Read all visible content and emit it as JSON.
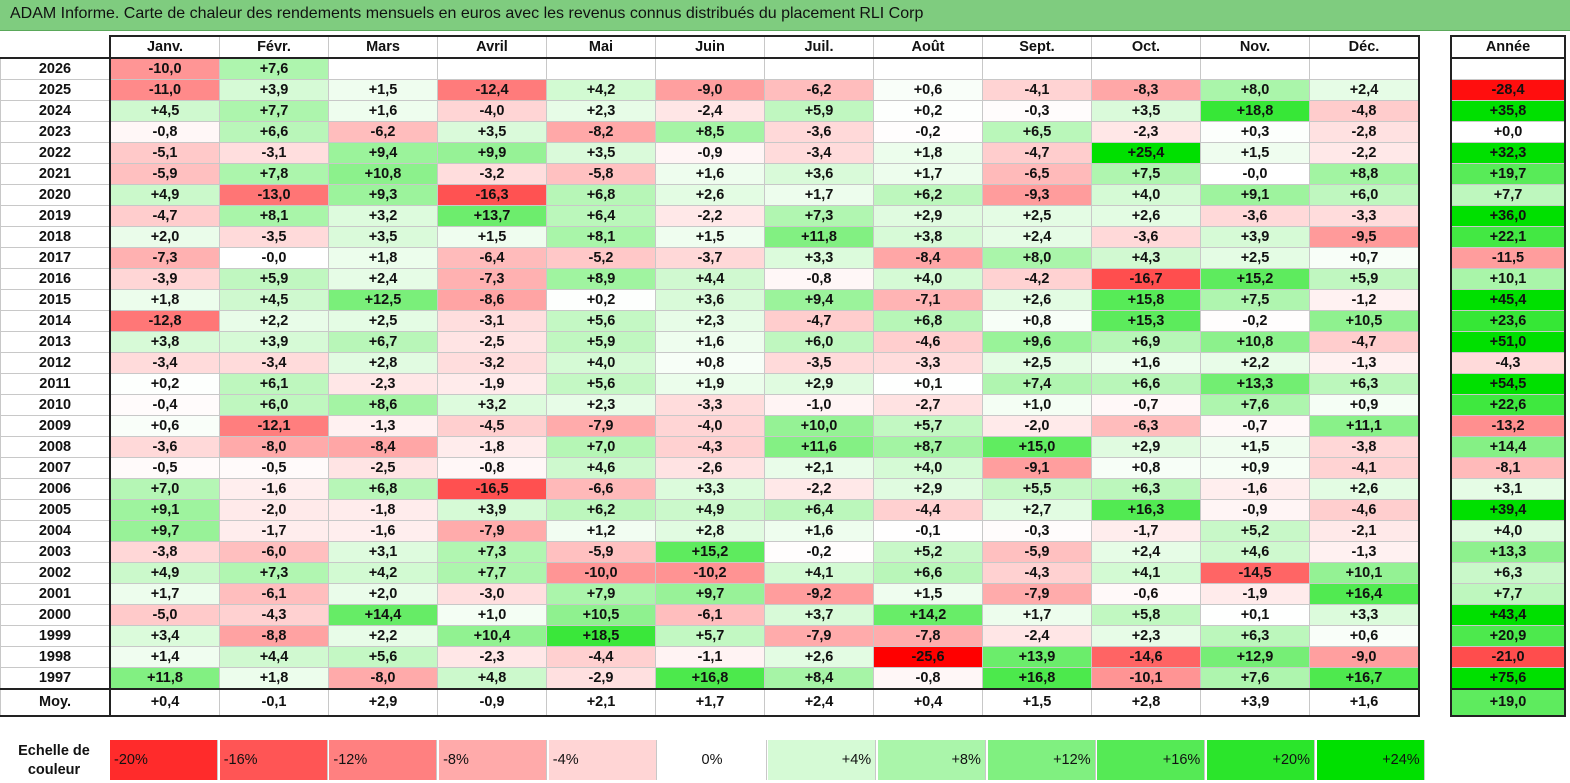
{
  "title": "ADAM Informe. Carte de chaleur des rendements mensuels en euros avec les revenus connus distribués du placement RLI Corp",
  "chart_data": {
    "type": "heatmap",
    "title": "ADAM Informe. Carte de chaleur des rendements mensuels en euros avec les revenus connus distribués du placement RLI Corp",
    "columns": [
      "Janv.",
      "Févr.",
      "Mars",
      "Avril",
      "Mai",
      "Juin",
      "Juil.",
      "Août",
      "Sept.",
      "Oct.",
      "Nov.",
      "Déc."
    ],
    "year_header": "Année",
    "rows": [
      {
        "label": "2026",
        "months": [
          -10.0,
          7.6,
          null,
          null,
          null,
          null,
          null,
          null,
          null,
          null,
          null,
          null
        ],
        "year": null
      },
      {
        "label": "2025",
        "months": [
          -11.0,
          3.9,
          1.5,
          -12.4,
          4.2,
          -9.0,
          -6.2,
          0.6,
          -4.1,
          -8.3,
          8.0,
          2.4
        ],
        "year": -28.4
      },
      {
        "label": "2024",
        "months": [
          4.5,
          7.7,
          1.6,
          -4.0,
          2.3,
          -2.4,
          5.9,
          0.2,
          -0.3,
          3.5,
          18.8,
          -4.8
        ],
        "year": 35.8
      },
      {
        "label": "2023",
        "months": [
          -0.8,
          6.6,
          -6.2,
          3.5,
          -8.2,
          8.5,
          -3.6,
          -0.2,
          6.5,
          -2.3,
          0.3,
          -2.8
        ],
        "year": 0.0
      },
      {
        "label": "2022",
        "months": [
          -5.1,
          -3.1,
          9.4,
          9.9,
          3.5,
          -0.9,
          -3.4,
          1.8,
          -4.7,
          25.4,
          1.5,
          -2.2
        ],
        "year": 32.3
      },
      {
        "label": "2021",
        "months": [
          -5.9,
          7.8,
          10.8,
          -3.2,
          -5.8,
          1.6,
          3.6,
          1.7,
          -6.5,
          7.5,
          -0.0,
          8.8
        ],
        "year": 19.7
      },
      {
        "label": "2020",
        "months": [
          4.9,
          -13.0,
          9.3,
          -16.3,
          6.8,
          2.6,
          1.7,
          6.2,
          -9.3,
          4.0,
          9.1,
          6.0
        ],
        "year": 7.7
      },
      {
        "label": "2019",
        "months": [
          -4.7,
          8.1,
          3.2,
          13.7,
          6.4,
          -2.2,
          7.3,
          2.9,
          2.5,
          2.6,
          -3.6,
          -3.3
        ],
        "year": 36.0
      },
      {
        "label": "2018",
        "months": [
          2.0,
          -3.5,
          3.5,
          1.5,
          8.1,
          1.5,
          11.8,
          3.8,
          2.4,
          -3.6,
          3.9,
          -9.5
        ],
        "year": 22.1
      },
      {
        "label": "2017",
        "months": [
          -7.3,
          -0.0,
          1.8,
          -6.4,
          -5.2,
          -3.7,
          3.3,
          -8.4,
          8.0,
          4.3,
          2.5,
          0.7
        ],
        "year": -11.5
      },
      {
        "label": "2016",
        "months": [
          -3.9,
          5.9,
          2.4,
          -7.3,
          8.9,
          4.4,
          -0.8,
          4.0,
          -4.2,
          -16.7,
          15.2,
          5.9
        ],
        "year": 10.1
      },
      {
        "label": "2015",
        "months": [
          1.8,
          4.5,
          12.5,
          -8.6,
          0.2,
          3.6,
          9.4,
          -7.1,
          2.6,
          15.8,
          7.5,
          -1.2
        ],
        "year": 45.4
      },
      {
        "label": "2014",
        "months": [
          -12.8,
          2.2,
          2.5,
          -3.1,
          5.6,
          2.3,
          -4.7,
          6.8,
          0.8,
          15.3,
          -0.2,
          10.5
        ],
        "year": 23.6
      },
      {
        "label": "2013",
        "months": [
          3.8,
          3.9,
          6.7,
          -2.5,
          5.9,
          1.6,
          6.0,
          -4.6,
          9.6,
          6.9,
          10.8,
          -4.7
        ],
        "year": 51.0
      },
      {
        "label": "2012",
        "months": [
          -3.4,
          -3.4,
          2.8,
          -3.2,
          4.0,
          0.8,
          -3.5,
          -3.3,
          2.5,
          1.6,
          2.2,
          -1.3
        ],
        "year": -4.3
      },
      {
        "label": "2011",
        "months": [
          0.2,
          6.1,
          -2.3,
          -1.9,
          5.6,
          1.9,
          2.9,
          0.1,
          7.4,
          6.6,
          13.3,
          6.3
        ],
        "year": 54.5
      },
      {
        "label": "2010",
        "months": [
          -0.4,
          6.0,
          8.6,
          3.2,
          2.3,
          -3.3,
          -1.0,
          -2.7,
          1.0,
          -0.7,
          7.6,
          0.9
        ],
        "year": 22.6
      },
      {
        "label": "2009",
        "months": [
          0.6,
          -12.1,
          -1.3,
          -4.5,
          -7.9,
          -4.0,
          10.0,
          5.7,
          -2.0,
          -6.3,
          -0.7,
          11.1
        ],
        "year": -13.2
      },
      {
        "label": "2008",
        "months": [
          -3.6,
          -8.0,
          -8.4,
          -1.8,
          7.0,
          -4.3,
          11.6,
          8.7,
          15.0,
          2.9,
          1.5,
          -3.8
        ],
        "year": 14.4
      },
      {
        "label": "2007",
        "months": [
          -0.5,
          -0.5,
          -2.5,
          -0.8,
          4.6,
          -2.6,
          2.1,
          4.0,
          -9.1,
          0.8,
          0.9,
          -4.1
        ],
        "year": -8.1
      },
      {
        "label": "2006",
        "months": [
          7.0,
          -1.6,
          6.8,
          -16.5,
          -6.6,
          3.3,
          -2.2,
          2.9,
          5.5,
          6.3,
          -1.6,
          2.6
        ],
        "year": 3.1
      },
      {
        "label": "2005",
        "months": [
          9.1,
          -2.0,
          -1.8,
          3.9,
          6.2,
          4.9,
          6.4,
          -4.4,
          2.7,
          16.3,
          -0.9,
          -4.6
        ],
        "year": 39.4
      },
      {
        "label": "2004",
        "months": [
          9.7,
          -1.7,
          -1.6,
          -7.9,
          1.2,
          2.8,
          1.6,
          -0.1,
          -0.3,
          -1.7,
          5.2,
          -2.1
        ],
        "year": 4.0
      },
      {
        "label": "2003",
        "months": [
          -3.8,
          -6.0,
          3.1,
          7.3,
          -5.9,
          15.2,
          -0.2,
          5.2,
          -5.9,
          2.4,
          4.6,
          -1.3
        ],
        "year": 13.3
      },
      {
        "label": "2002",
        "months": [
          4.9,
          7.3,
          4.2,
          7.7,
          -10.0,
          -10.2,
          4.1,
          6.6,
          -4.3,
          4.1,
          -14.5,
          10.1
        ],
        "year": 6.3
      },
      {
        "label": "2001",
        "months": [
          1.7,
          -6.1,
          2.0,
          -3.0,
          7.9,
          9.7,
          -9.2,
          1.5,
          -7.9,
          -0.6,
          -1.9,
          16.4
        ],
        "year": 7.7
      },
      {
        "label": "2000",
        "months": [
          -5.0,
          -4.3,
          14.4,
          1.0,
          10.5,
          -6.1,
          3.7,
          14.2,
          1.7,
          5.8,
          0.1,
          3.3
        ],
        "year": 43.4
      },
      {
        "label": "1999",
        "months": [
          3.4,
          -8.8,
          2.2,
          10.4,
          18.5,
          5.7,
          -7.9,
          -7.8,
          -2.4,
          2.3,
          6.3,
          0.6
        ],
        "year": 20.9
      },
      {
        "label": "1998",
        "months": [
          1.4,
          4.4,
          5.6,
          -2.3,
          -4.4,
          -1.1,
          2.6,
          -25.6,
          13.9,
          -14.6,
          12.9,
          -9.0
        ],
        "year": -21.0
      },
      {
        "label": "1997",
        "months": [
          11.8,
          1.8,
          -8.0,
          4.8,
          -2.9,
          16.8,
          8.4,
          -0.8,
          16.8,
          -10.1,
          7.6,
          16.7
        ],
        "year": 75.6
      }
    ],
    "average": {
      "label": "Moy.",
      "months": [
        0.4,
        -0.1,
        2.9,
        -0.9,
        2.1,
        1.7,
        2.4,
        0.4,
        1.5,
        2.8,
        3.9,
        1.6
      ],
      "year": 19.0
    },
    "scale_label": "Echelle de couleur",
    "scale": [
      "-20%",
      "-16%",
      "-12%",
      "-8%",
      "-4%",
      "0%",
      "+4%",
      "+8%",
      "+12%",
      "+16%",
      "+20%",
      "+24%"
    ],
    "scale_values": [
      -20,
      -16,
      -12,
      -8,
      -4,
      0,
      4,
      8,
      12,
      16,
      20,
      24
    ],
    "colors": {
      "negative": "#ff0000",
      "neutral": "#ffffff",
      "positive": "#00e000",
      "title_bg": "#7fcc7f"
    }
  }
}
